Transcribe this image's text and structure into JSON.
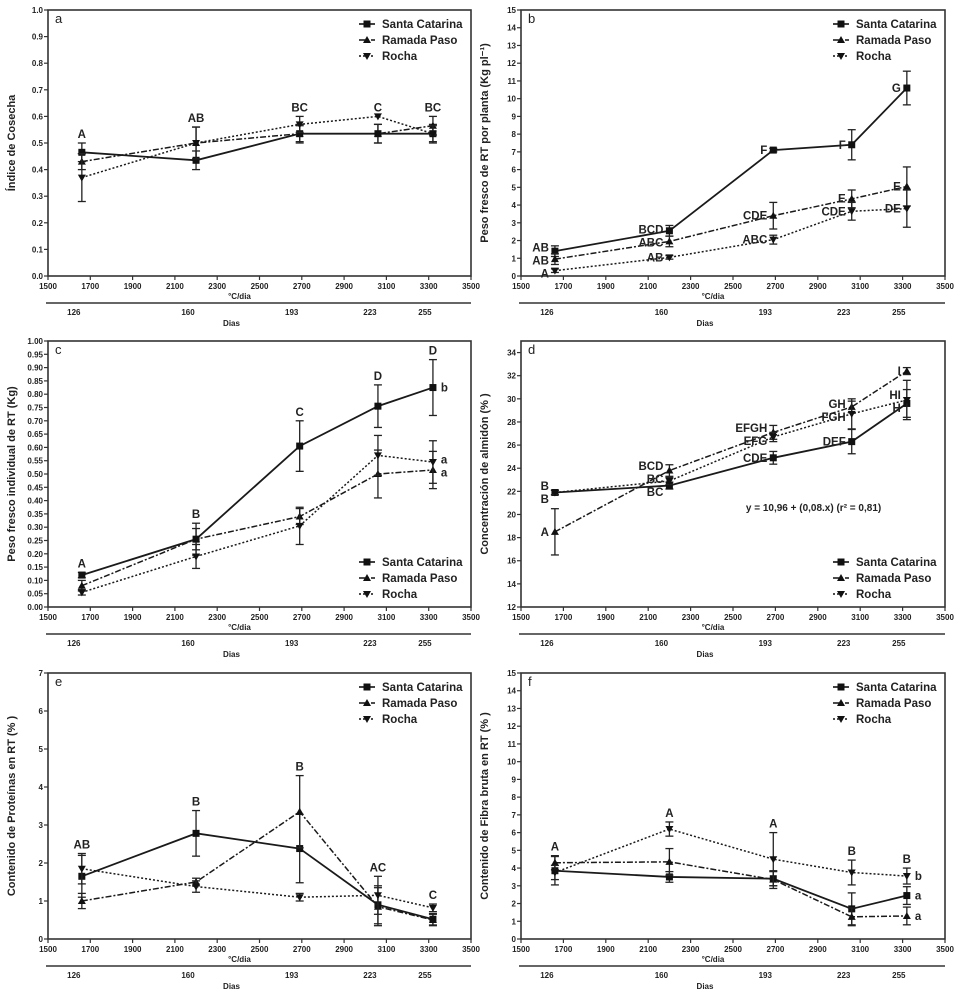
{
  "chart_data": [
    {
      "type": "line",
      "panel_label": "a",
      "ylabel": "Índice de Cosecha",
      "xlabel": "°C/dia",
      "x2label": "Dias",
      "xlim": [
        1500,
        3500
      ],
      "ylim": [
        0,
        1.0
      ],
      "ystep": 0.1,
      "ydecimals": 1,
      "xticks": [
        1500,
        1700,
        1900,
        2100,
        2300,
        2500,
        2700,
        2900,
        3100,
        3300,
        3500
      ],
      "x": [
        1660,
        2200,
        2690,
        3060,
        3320
      ],
      "days": [
        "126",
        "160",
        "193",
        "223",
        "255"
      ],
      "legend": "top-right",
      "series": [
        {
          "name": "Santa Catarina",
          "values": [
            0.465,
            0.435,
            0.535,
            0.535,
            0.535
          ],
          "error": [
            0.035,
            0.035,
            0.035,
            0.035,
            0.035
          ]
        },
        {
          "name": "Ramada Paso",
          "values": [
            0.43,
            0.5,
            0.535,
            0.535,
            0.565
          ],
          "error": [
            0.03,
            0.06,
            0.03,
            0.035,
            0.035
          ]
        },
        {
          "name": "Rocha",
          "values": [
            0.37,
            0.5,
            0.57,
            0.6,
            0.535
          ],
          "error": [
            0.09,
            0.06,
            0.03,
            0.0,
            0.03
          ]
        }
      ],
      "group_letters": [
        "A",
        "AB",
        "BC",
        "C",
        "BC"
      ]
    },
    {
      "type": "line",
      "panel_label": "b",
      "ylabel": "Peso fresco de RT por planta (Kg pl⁻¹)",
      "xlabel": "°C/dia",
      "x2label": "Dias",
      "xlim": [
        1500,
        3500
      ],
      "ylim": [
        0,
        15
      ],
      "ystep": 1,
      "ydecimals": 0,
      "xticks": [
        1500,
        1700,
        1900,
        2100,
        2300,
        2500,
        2700,
        2900,
        3100,
        3300,
        3500
      ],
      "x": [
        1660,
        2200,
        2690,
        3060,
        3320
      ],
      "days": [
        "126",
        "160",
        "193",
        "223",
        "255"
      ],
      "legend": "top-right",
      "series": [
        {
          "name": "Santa Catarina",
          "values": [
            1.4,
            2.55,
            7.1,
            7.4,
            10.6
          ],
          "error": [
            0.3,
            0.3,
            0.1,
            0.85,
            0.95
          ],
          "letters": [
            "AB",
            "BCD",
            "F",
            "F",
            "G"
          ]
        },
        {
          "name": "Ramada Paso",
          "values": [
            0.95,
            1.95,
            3.4,
            4.35,
            5.05
          ],
          "error": [
            0.3,
            0.3,
            0.75,
            0.5,
            1.1
          ],
          "letters": [
            "AB",
            "ABC",
            "CDE",
            "E",
            "E"
          ]
        },
        {
          "name": "Rocha",
          "values": [
            0.3,
            1.05,
            2.05,
            3.65,
            3.8
          ],
          "error": [
            0.1,
            0.1,
            0.25,
            0.5,
            1.05
          ],
          "letters": [
            "A",
            "AB",
            "ABC",
            "CDE",
            "DE"
          ]
        }
      ]
    },
    {
      "type": "line",
      "panel_label": "c",
      "ylabel": "Peso fresco individual de RT (Kg)",
      "xlabel": "°C/dia",
      "x2label": "Dias",
      "xlim": [
        1500,
        3500
      ],
      "ylim": [
        0,
        1.0
      ],
      "ystep": 0.05,
      "ydecimals": 2,
      "xticks": [
        1500,
        1700,
        1900,
        2100,
        2300,
        2500,
        2700,
        2900,
        3100,
        3300,
        3500
      ],
      "x": [
        1660,
        2200,
        2690,
        3060,
        3320
      ],
      "days": [
        "126",
        "160",
        "193",
        "223",
        "255"
      ],
      "legend": "bottom-right",
      "series": [
        {
          "name": "Santa Catarina",
          "values": [
            0.12,
            0.255,
            0.605,
            0.755,
            0.825
          ],
          "error": [
            0.01,
            0.06,
            0.095,
            0.08,
            0.105
          ],
          "end_letter": "b"
        },
        {
          "name": "Ramada Paso",
          "values": [
            0.08,
            0.255,
            0.34,
            0.5,
            0.515
          ],
          "error": [
            0.02,
            0.04,
            0.03,
            0.09,
            0.07
          ],
          "end_letter": "a"
        },
        {
          "name": "Rocha",
          "values": [
            0.055,
            0.19,
            0.305,
            0.57,
            0.545
          ],
          "error": [
            0.01,
            0.045,
            0.07,
            0.075,
            0.08
          ],
          "end_letter": "a"
        }
      ],
      "group_letters": [
        "A",
        "B",
        "C",
        "D",
        "D"
      ]
    },
    {
      "type": "line",
      "panel_label": "d",
      "ylabel": "Concentración de almidón (% )",
      "xlabel": "°C/dia",
      "x2label": "Dias",
      "xlim": [
        1500,
        3500
      ],
      "ylim": [
        12,
        35
      ],
      "ystep": 2,
      "ydecimals": 0,
      "ystart": 12,
      "yend": 34,
      "xticks": [
        1500,
        1700,
        1900,
        2100,
        2300,
        2500,
        2700,
        2900,
        3100,
        3300,
        3500
      ],
      "x": [
        1660,
        2200,
        2690,
        3060,
        3320
      ],
      "days": [
        "126",
        "160",
        "193",
        "223",
        "255"
      ],
      "legend": "bottom-right",
      "equation": "y  = 10,96 + (0,08.x) (r² = 0,81)",
      "series": [
        {
          "name": "Santa Catarina",
          "values": [
            21.9,
            22.5,
            24.9,
            26.3,
            29.6
          ],
          "error": [
            0.2,
            0.3,
            0.55,
            1.05,
            1.2
          ],
          "letters": [
            "B",
            "BC",
            "CDE",
            "DEF",
            "H"
          ]
        },
        {
          "name": "Ramada Paso",
          "values": [
            18.5,
            23.8,
            27.1,
            29.3,
            32.4
          ],
          "error": [
            2.0,
            0.5,
            0.6,
            0.5,
            0.3
          ],
          "letters": [
            "A",
            "BCD",
            "EFGH",
            "GH",
            "I"
          ]
        },
        {
          "name": "Rocha",
          "values": [
            21.9,
            22.9,
            26.7,
            28.7,
            29.9
          ],
          "error": [
            0.2,
            0.3,
            0.4,
            1.3,
            1.7
          ],
          "letters": [
            "B",
            "BC",
            "EFG",
            "FGH",
            "HI"
          ]
        }
      ]
    },
    {
      "type": "line",
      "panel_label": "e",
      "ylabel": "Contenido de Proteínas en RT (% )",
      "xlabel": "°C/dia",
      "x2label": "Dias",
      "xlim": [
        1500,
        3500
      ],
      "ylim": [
        0,
        7
      ],
      "ystep": 1,
      "ydecimals": 0,
      "xticks": [
        1500,
        1700,
        1900,
        2100,
        2300,
        2500,
        2700,
        2900,
        3100,
        3300,
        3500
      ],
      "x": [
        1660,
        2200,
        2690,
        3060,
        3320
      ],
      "days": [
        "126",
        "160",
        "193",
        "223",
        "255"
      ],
      "legend": "top-right",
      "series": [
        {
          "name": "Santa Catarina",
          "values": [
            1.65,
            2.78,
            2.38,
            0.9,
            0.52
          ],
          "error": [
            0.55,
            0.6,
            0.9,
            0.5,
            0.15
          ]
        },
        {
          "name": "Ramada Paso",
          "values": [
            1.0,
            1.5,
            3.35,
            0.85,
            0.5
          ],
          "error": [
            0.2,
            0.1,
            0.95,
            0.5,
            0.15
          ]
        },
        {
          "name": "Rocha",
          "values": [
            1.85,
            1.38,
            1.1,
            1.15,
            0.82
          ],
          "error": [
            0.4,
            0.15,
            0.1,
            0.5,
            0.1
          ]
        }
      ],
      "group_letters": [
        "AB",
        "B",
        "B",
        "AC",
        "C"
      ]
    },
    {
      "type": "line",
      "panel_label": "f",
      "ylabel": "Contenido de Fibra bruta en RT (% )",
      "xlabel": "°C/dia",
      "x2label": "Dias",
      "xlim": [
        1500,
        3500
      ],
      "ylim": [
        0,
        15
      ],
      "ystep": 1,
      "ydecimals": 0,
      "xticks": [
        1500,
        1700,
        1900,
        2100,
        2300,
        2500,
        2700,
        2900,
        3100,
        3300,
        3500
      ],
      "x": [
        1660,
        2200,
        2690,
        3060,
        3320
      ],
      "days": [
        "126",
        "160",
        "193",
        "223",
        "255"
      ],
      "legend": "top-right",
      "series": [
        {
          "name": "Santa Catarina",
          "values": [
            3.85,
            3.5,
            3.4,
            1.7,
            2.45
          ],
          "error": [
            0.8,
            0.3,
            0.4,
            0.9,
            0.5
          ],
          "end_letter": "a"
        },
        {
          "name": "Ramada Paso",
          "values": [
            4.3,
            4.35,
            3.35,
            1.25,
            1.3
          ],
          "error": [
            0.4,
            0.75,
            0.5,
            0.5,
            0.5
          ],
          "end_letter": "a"
        },
        {
          "name": "Rocha",
          "values": [
            3.75,
            6.2,
            4.5,
            3.75,
            3.55
          ],
          "error": [
            0.4,
            0.4,
            1.5,
            0.7,
            0.45
          ],
          "end_letter": "b"
        }
      ],
      "group_letters": [
        "A",
        "A",
        "A",
        "B",
        "B"
      ]
    }
  ],
  "series_styles": [
    {
      "marker": "square",
      "dash": "",
      "color": "#1a1a1a"
    },
    {
      "marker": "triangle-up",
      "dash": "6 2 2 2",
      "color": "#1a1a1a"
    },
    {
      "marker": "triangle-down",
      "dash": "2 2",
      "color": "#1a1a1a"
    }
  ]
}
